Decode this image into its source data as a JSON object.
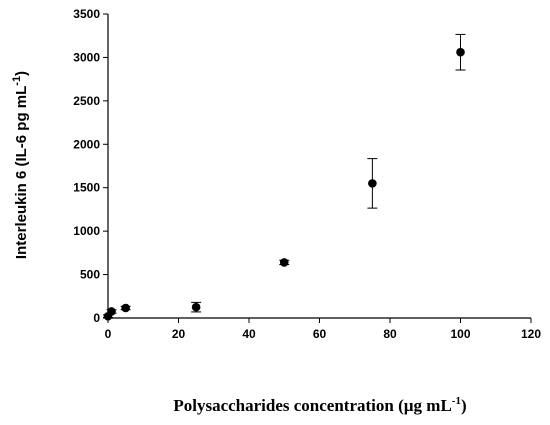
{
  "chart_data": {
    "type": "scatter",
    "title": "",
    "xlabel": {
      "main": "Polysaccharides concentration (µg mL",
      "sup": "-1",
      "close": ")"
    },
    "ylabel": {
      "main": "Interleukin 6 (IL-6 pg mL",
      "sup": "-1",
      "close": ")"
    },
    "xlim": [
      0,
      120
    ],
    "ylim": [
      0,
      3500
    ],
    "xticks": [
      0,
      20,
      40,
      60,
      80,
      100,
      120
    ],
    "yticks": [
      0,
      500,
      1000,
      1500,
      2000,
      2500,
      3000,
      3500
    ],
    "grid": false,
    "legend": "none",
    "marker_color": "#000000",
    "points": [
      {
        "x": 0,
        "y": 20,
        "err": 15
      },
      {
        "x": 1,
        "y": 75,
        "err": 20
      },
      {
        "x": 5,
        "y": 115,
        "err": 20
      },
      {
        "x": 25,
        "y": 125,
        "err": 55
      },
      {
        "x": 50,
        "y": 640,
        "err": 25
      },
      {
        "x": 75,
        "y": 1550,
        "err": 285
      },
      {
        "x": 100,
        "y": 3060,
        "err": 205
      }
    ]
  }
}
